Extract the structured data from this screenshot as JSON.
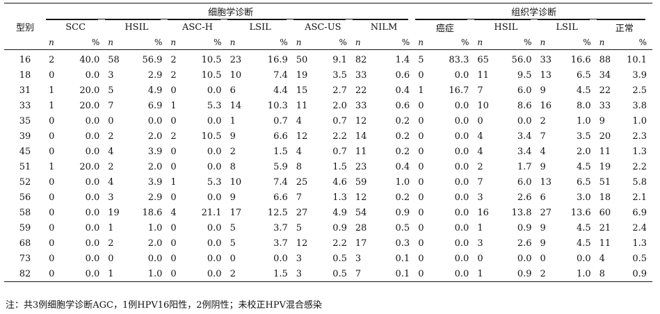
{
  "table": {
    "type_header": "型别",
    "group_cytology": "细胞学诊断",
    "group_histology": "组织学诊断",
    "cyto_cols": [
      "SCC",
      "HSIL",
      "ASC-H",
      "LSIL",
      "ASC-US",
      "NILM"
    ],
    "histo_cols": [
      "癌症",
      "HSIL",
      "LSIL",
      "正常"
    ],
    "n_label": "n",
    "pct_label": "%",
    "rows": [
      {
        "type": "16",
        "cells": [
          "2",
          "40.0",
          "58",
          "56.9",
          "2",
          "10.5",
          "23",
          "16.9",
          "50",
          "9.1",
          "82",
          "1.4",
          "5",
          "83.3",
          "65",
          "56.0",
          "33",
          "16.6",
          "88",
          "10.1"
        ]
      },
      {
        "type": "18",
        "cells": [
          "0",
          "0.0",
          "3",
          "2.9",
          "2",
          "10.5",
          "10",
          "7.4",
          "19",
          "3.5",
          "33",
          "0.6",
          "0",
          "0.0",
          "11",
          "9.5",
          "13",
          "6.5",
          "34",
          "3.9"
        ]
      },
      {
        "type": "31",
        "cells": [
          "1",
          "20.0",
          "5",
          "4.9",
          "0",
          "0.0",
          "6",
          "4.4",
          "15",
          "2.7",
          "22",
          "0.4",
          "1",
          "16.7",
          "7",
          "6.0",
          "9",
          "4.5",
          "22",
          "2.5"
        ]
      },
      {
        "type": "33",
        "cells": [
          "1",
          "20.0",
          "7",
          "6.9",
          "1",
          "5.3",
          "14",
          "10.3",
          "11",
          "2.0",
          "33",
          "0.6",
          "0",
          "0.0",
          "10",
          "8.6",
          "16",
          "8.0",
          "33",
          "3.8"
        ]
      },
      {
        "type": "35",
        "cells": [
          "0",
          "0.0",
          "0",
          "0.0",
          "0",
          "0.0",
          "1",
          "0.7",
          "4",
          "0.7",
          "12",
          "0.2",
          "0",
          "0.0",
          "0",
          "0.0",
          "2",
          "1.0",
          "9",
          "1.0"
        ]
      },
      {
        "type": "39",
        "cells": [
          "0",
          "0.0",
          "2",
          "2.0",
          "2",
          "10.5",
          "9",
          "6.6",
          "12",
          "2.2",
          "14",
          "0.2",
          "0",
          "0.0",
          "4",
          "3.4",
          "7",
          "3.5",
          "20",
          "2.3"
        ]
      },
      {
        "type": "45",
        "cells": [
          "0",
          "0.0",
          "4",
          "3.9",
          "0",
          "0.0",
          "2",
          "1.5",
          "4",
          "0.7",
          "11",
          "0.2",
          "0",
          "0.0",
          "4",
          "3.4",
          "4",
          "2.0",
          "11",
          "1.3"
        ]
      },
      {
        "type": "51",
        "cells": [
          "1",
          "20.0",
          "2",
          "2.0",
          "0",
          "0.0",
          "8",
          "5.9",
          "8",
          "1.5",
          "23",
          "0.4",
          "0",
          "0.0",
          "2",
          "1.7",
          "9",
          "4.5",
          "19",
          "2.2"
        ]
      },
      {
        "type": "52",
        "cells": [
          "0",
          "0.0",
          "4",
          "3.9",
          "1",
          "5.3",
          "10",
          "7.4",
          "25",
          "4.6",
          "59",
          "1.0",
          "0",
          "0.0",
          "7",
          "6.0",
          "13",
          "6.5",
          "51",
          "5.8"
        ]
      },
      {
        "type": "56",
        "cells": [
          "0",
          "0.0",
          "3",
          "2.9",
          "0",
          "0.0",
          "9",
          "6.6",
          "7",
          "1.3",
          "12",
          "0.2",
          "0",
          "0.0",
          "3",
          "2.6",
          "6",
          "3.0",
          "18",
          "2.1"
        ]
      },
      {
        "type": "58",
        "cells": [
          "0",
          "0.0",
          "19",
          "18.6",
          "4",
          "21.1",
          "17",
          "12.5",
          "27",
          "4.9",
          "54",
          "0.9",
          "0",
          "0.0",
          "16",
          "13.8",
          "27",
          "13.6",
          "60",
          "6.9"
        ]
      },
      {
        "type": "59",
        "cells": [
          "0",
          "0.0",
          "1",
          "1.0",
          "0",
          "0.0",
          "5",
          "3.7",
          "5",
          "0.9",
          "28",
          "0.5",
          "0",
          "0.0",
          "1",
          "0.9",
          "9",
          "4.5",
          "21",
          "2.4"
        ]
      },
      {
        "type": "68",
        "cells": [
          "0",
          "0.0",
          "2",
          "2.0",
          "0",
          "0.0",
          "5",
          "3.7",
          "12",
          "2.2",
          "17",
          "0.3",
          "0",
          "0.0",
          "3",
          "2.6",
          "9",
          "4.5",
          "11",
          "1.3"
        ]
      },
      {
        "type": "73",
        "cells": [
          "0",
          "0.0",
          "0",
          "0.0",
          "0",
          "0.0",
          "0",
          "0.0",
          "3",
          "0.5",
          "3",
          "0.1",
          "0",
          "0.0",
          "0",
          "0.0",
          "0",
          "0.0",
          "4",
          "0.5"
        ]
      },
      {
        "type": "82",
        "cells": [
          "0",
          "0.0",
          "1",
          "1.0",
          "0",
          "0.0",
          "2",
          "1.5",
          "3",
          "0.5",
          "7",
          "0.1",
          "0",
          "0.0",
          "1",
          "0.9",
          "2",
          "1.0",
          "8",
          "0.9"
        ]
      }
    ]
  },
  "footnote": "注：共3例细胞学诊断AGC，1例HPV16阳性，2例阴性；未校正HPV混合感染"
}
